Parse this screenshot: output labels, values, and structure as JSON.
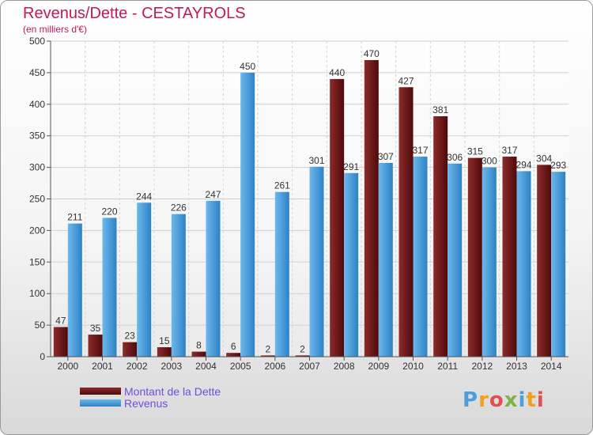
{
  "chart_data": {
    "type": "bar",
    "title": "Revenus/Dette - CESTAYROLS",
    "subtitle": "(en milliers d'€)",
    "categories": [
      "2000",
      "2001",
      "2002",
      "2003",
      "2004",
      "2005",
      "2006",
      "2007",
      "2008",
      "2009",
      "2010",
      "2011",
      "2012",
      "2013",
      "2014"
    ],
    "series": [
      {
        "name": "Montant de la Dette",
        "color": "#6e1515",
        "values": [
          47,
          35,
          23,
          15,
          8,
          6,
          2,
          2,
          440,
          470,
          427,
          381,
          315,
          317,
          304
        ]
      },
      {
        "name": "Revenus",
        "color": "#4aa3e6",
        "values": [
          211,
          220,
          244,
          226,
          247,
          450,
          261,
          301,
          291,
          307,
          317,
          306,
          300,
          294,
          293
        ]
      }
    ],
    "ylim": [
      0,
      500
    ],
    "yticks": [
      0,
      50,
      100,
      150,
      200,
      250,
      300,
      350,
      400,
      450,
      500
    ],
    "grid": true,
    "legend_position": "bottom-left"
  },
  "logo_text": "Proxiti"
}
